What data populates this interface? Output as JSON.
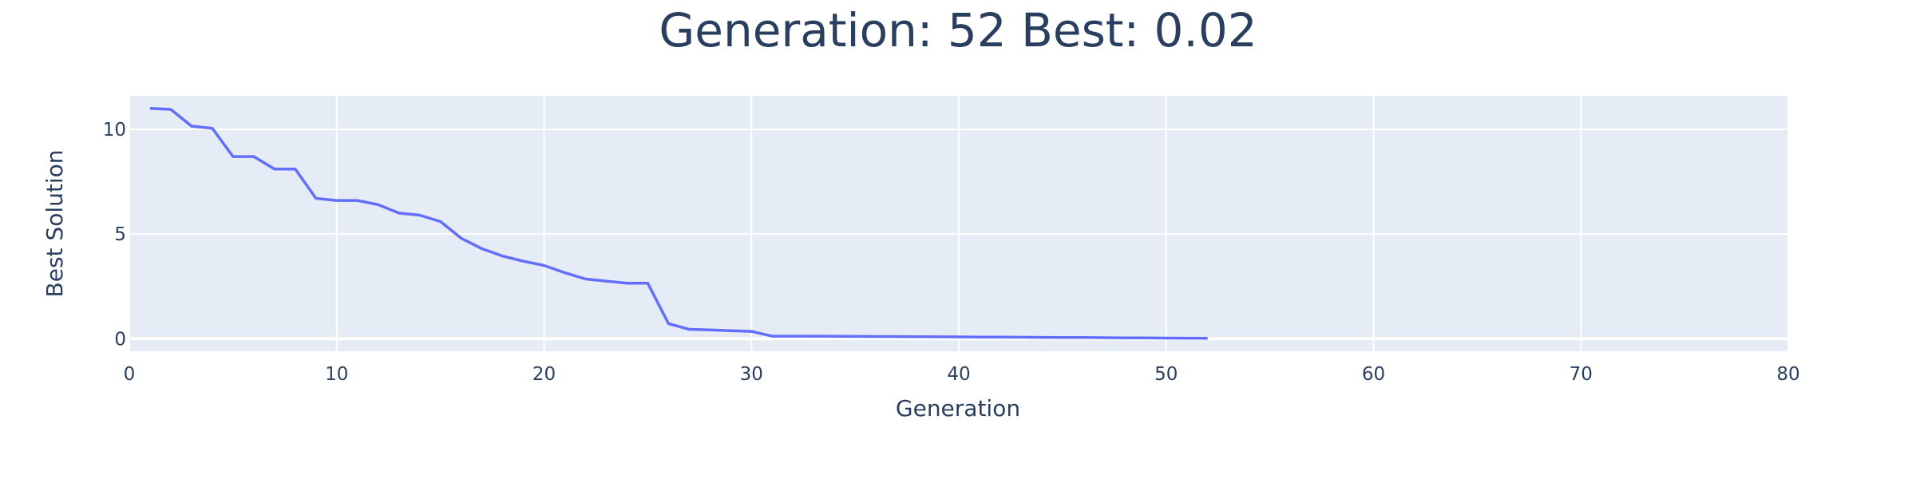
{
  "chart_data": {
    "type": "line",
    "title": "Generation: 52 Best: 0.02",
    "xlabel": "Generation",
    "ylabel": "Best Solution",
    "xlim": [
      0,
      80
    ],
    "ylim": [
      -0.6,
      11.6
    ],
    "xticks": [
      0,
      10,
      20,
      30,
      40,
      50,
      60,
      70,
      80
    ],
    "yticks": [
      0,
      5,
      10
    ],
    "grid": true,
    "legend": "none",
    "colors": {
      "line": "#636efa",
      "plot_bg": "#e5ecf6",
      "grid": "#ffffff",
      "text": "#2a3f5f"
    },
    "series": [
      {
        "x": [
          1,
          2,
          3,
          4,
          5,
          6,
          7,
          8,
          9,
          10,
          11,
          12,
          13,
          14,
          15,
          16,
          17,
          18,
          19,
          20,
          21,
          22,
          23,
          24,
          25,
          26,
          27,
          28,
          29,
          30,
          31,
          32,
          33,
          34,
          35,
          36,
          37,
          38,
          39,
          40,
          41,
          42,
          43,
          44,
          45,
          46,
          47,
          48,
          49,
          50,
          51,
          52
        ],
        "y": [
          11.0,
          10.95,
          10.15,
          10.05,
          8.7,
          8.7,
          8.1,
          8.1,
          6.7,
          6.6,
          6.6,
          6.4,
          6.0,
          5.9,
          5.6,
          4.8,
          4.3,
          3.95,
          3.7,
          3.5,
          3.15,
          2.85,
          2.75,
          2.65,
          2.65,
          0.72,
          0.45,
          0.42,
          0.38,
          0.35,
          0.12,
          0.12,
          0.12,
          0.115,
          0.11,
          0.105,
          0.1,
          0.095,
          0.09,
          0.085,
          0.08,
          0.075,
          0.07,
          0.065,
          0.06,
          0.055,
          0.05,
          0.04,
          0.035,
          0.03,
          0.025,
          0.02
        ]
      }
    ]
  }
}
